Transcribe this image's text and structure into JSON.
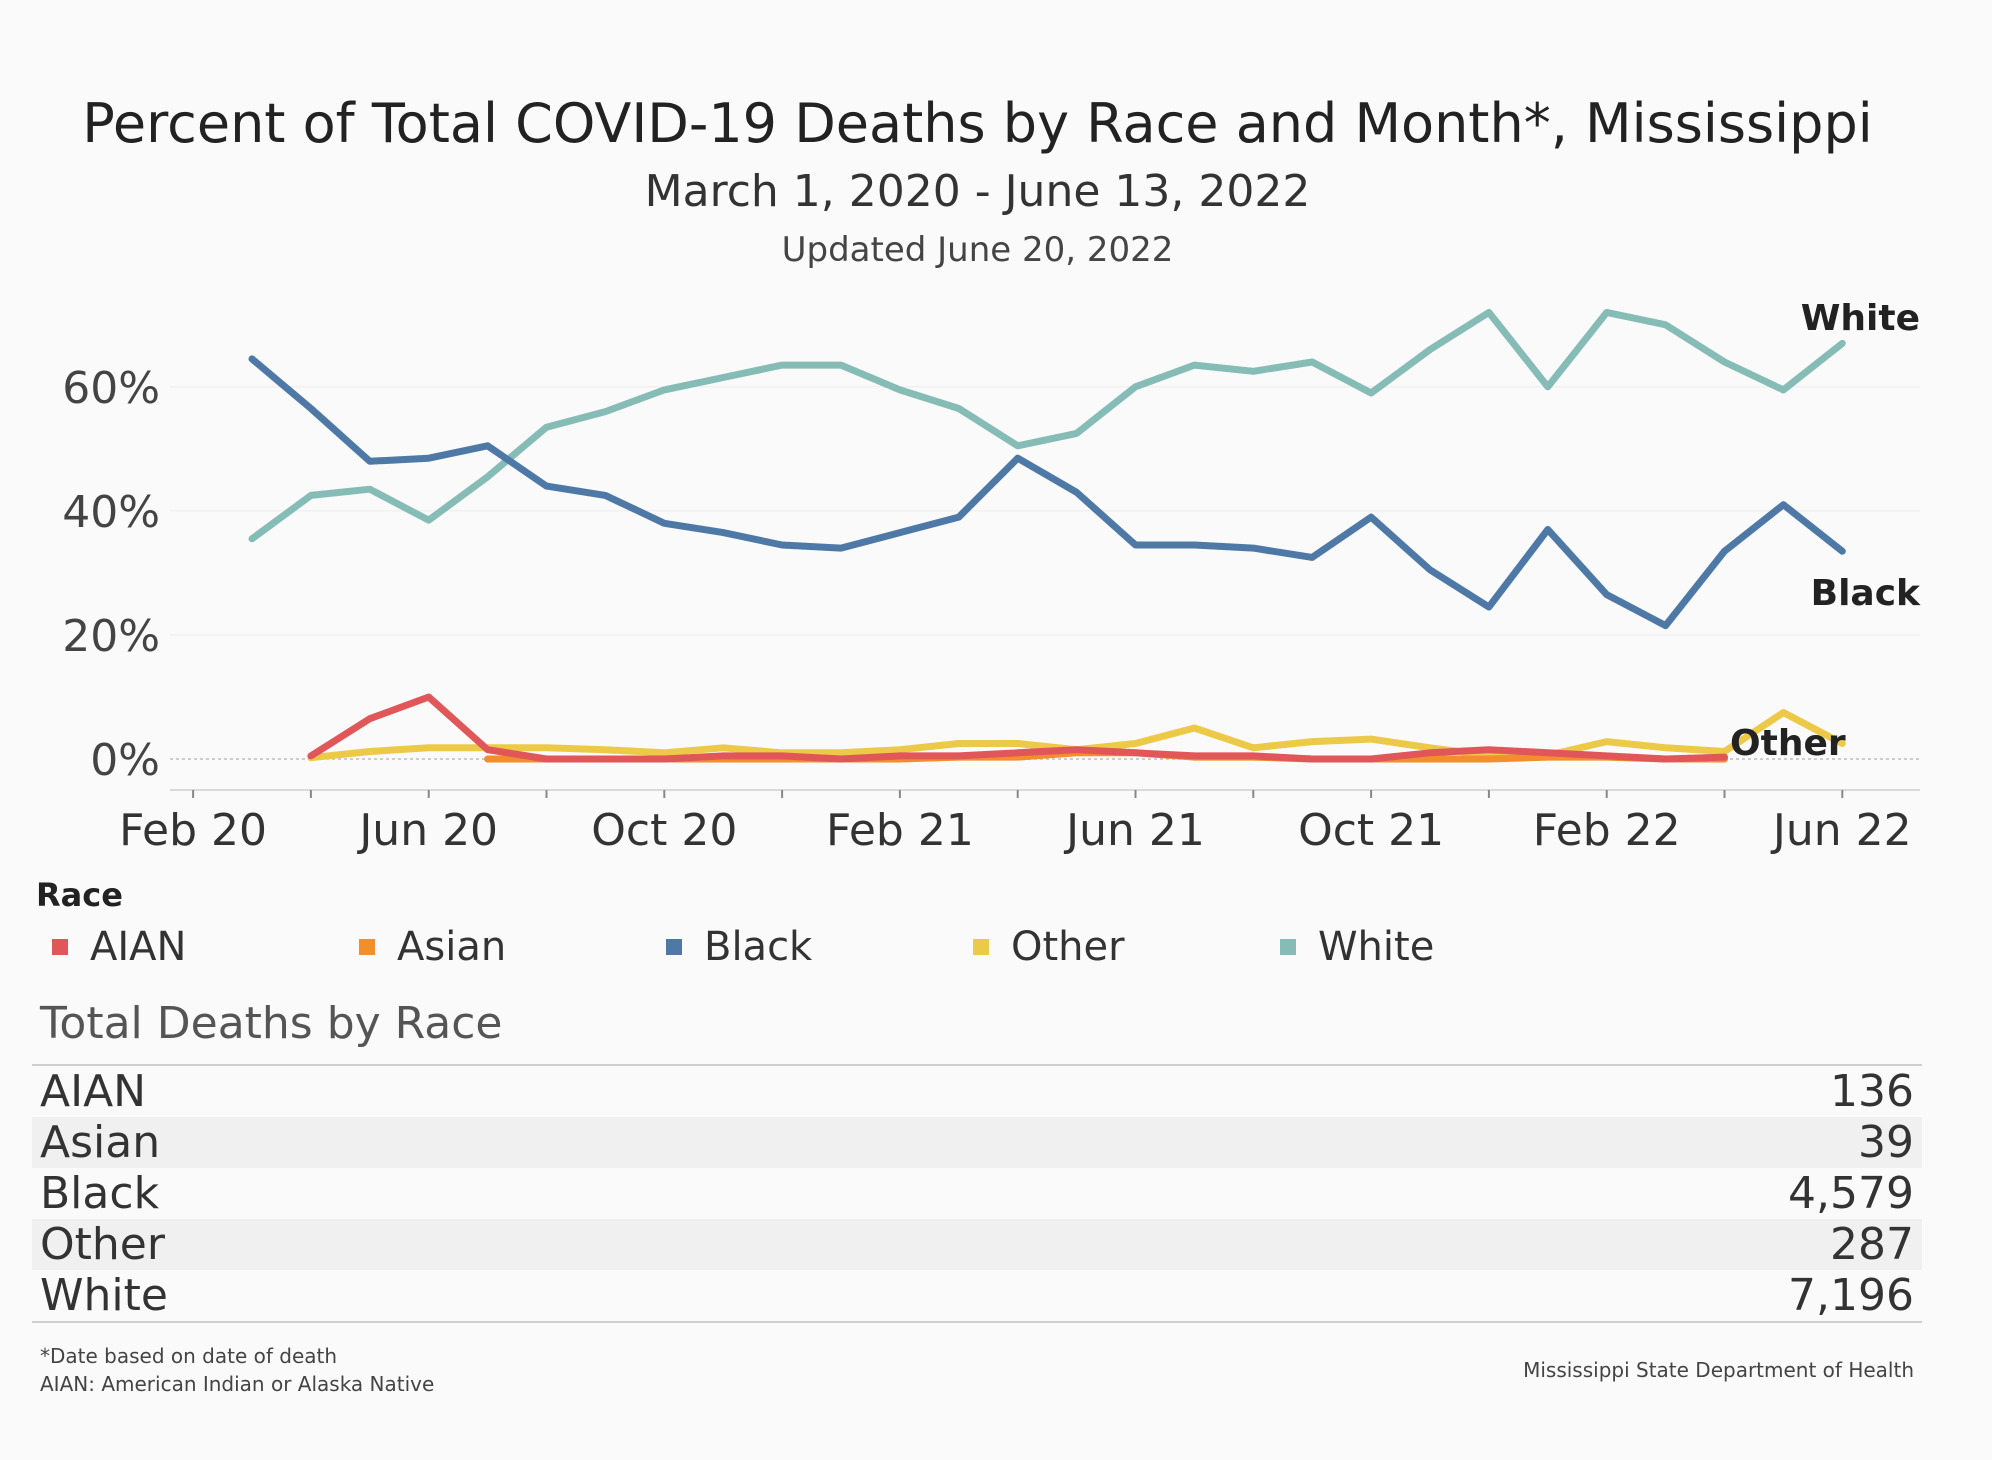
{
  "header": {
    "title": "Percent of Total COVID-19 Deaths by Race and Month*, Mississippi",
    "subtitle": "March 1, 2020 -  June 13, 2022",
    "updated": "Updated June 20, 2022"
  },
  "chart_data": {
    "type": "line",
    "x": [
      "Mar 20",
      "Apr 20",
      "May 20",
      "Jun 20",
      "Jul 20",
      "Aug 20",
      "Sep 20",
      "Oct 20",
      "Nov 20",
      "Dec 20",
      "Jan 21",
      "Feb 21",
      "Mar 21",
      "Apr 21",
      "May 21",
      "Jun 21",
      "Jul 21",
      "Aug 21",
      "Sep 21",
      "Oct 21",
      "Nov 21",
      "Dec 21",
      "Jan 22",
      "Feb 22",
      "Mar 22",
      "Apr 22",
      "May 22",
      "Jun 22"
    ],
    "x_ticks": [
      "Feb 20",
      "Jun 20",
      "Oct 20",
      "Feb 21",
      "Jun 21",
      "Oct 21",
      "Feb 22",
      "Jun 22"
    ],
    "y_ticks": [
      "0%",
      "20%",
      "40%",
      "60%"
    ],
    "ylim": [
      -5,
      74
    ],
    "series": [
      {
        "name": "White",
        "color": "#86bcb6",
        "end_label": "White",
        "values": [
          35.5,
          42.5,
          43.5,
          38.5,
          45.5,
          53.5,
          56,
          59.5,
          61.5,
          63.5,
          63.5,
          59.5,
          56.5,
          50.5,
          52.5,
          60,
          63.5,
          62.5,
          64,
          59,
          66,
          72,
          60,
          72,
          70,
          64,
          59.5,
          67
        ]
      },
      {
        "name": "Black",
        "color": "#4e79a7",
        "end_label": "Black",
        "values": [
          64.5,
          56.5,
          48,
          48.5,
          50.5,
          44,
          42.5,
          38,
          36.5,
          34.5,
          34,
          36.5,
          39,
          48.5,
          43,
          34.5,
          34.5,
          34,
          32.5,
          39,
          30.5,
          24.5,
          37,
          26.5,
          21.5,
          33.5,
          41,
          33.5
        ]
      },
      {
        "name": "Other",
        "color": "#edc948",
        "end_label": "Other",
        "values": [
          null,
          0.2,
          1.2,
          1.8,
          1.8,
          1.8,
          1.5,
          1,
          1.8,
          1,
          1,
          1.5,
          2.5,
          2.5,
          1.5,
          2.5,
          5,
          1.8,
          2.8,
          3.2,
          1.8,
          0.6,
          0.6,
          2.8,
          1.8,
          1.2,
          7.5,
          2.5
        ]
      },
      {
        "name": "Asian",
        "color": "#f28e2b",
        "end_label": "",
        "values": [
          null,
          null,
          null,
          null,
          0,
          0,
          0,
          0,
          0,
          0,
          0,
          0,
          0.3,
          0.3,
          1,
          1,
          0.3,
          0.3,
          0,
          0,
          0,
          0,
          0.3,
          0.3,
          0,
          0,
          null,
          null
        ]
      },
      {
        "name": "AIAN",
        "color": "#e15759",
        "end_label": "",
        "values": [
          null,
          0.5,
          6.5,
          10,
          1.5,
          0,
          0,
          0,
          0.5,
          0.5,
          0,
          0.5,
          0.5,
          1,
          1.5,
          1,
          0.5,
          0.5,
          0,
          0,
          1,
          1.5,
          1,
          0.5,
          0,
          0.3,
          null,
          null
        ]
      }
    ],
    "grid": true,
    "legend": {
      "title": "Race",
      "position": "bottom-left",
      "items": [
        {
          "label": "AIAN",
          "color": "#e15759"
        },
        {
          "label": "Asian",
          "color": "#f28e2b"
        },
        {
          "label": "Black",
          "color": "#4e79a7"
        },
        {
          "label": "Other",
          "color": "#edc948"
        },
        {
          "label": "White",
          "color": "#86bcb6"
        }
      ]
    }
  },
  "totals": {
    "title": "Total Deaths by Race",
    "rows": [
      {
        "name": "AIAN",
        "value": "136"
      },
      {
        "name": "Asian",
        "value": "39"
      },
      {
        "name": "Black",
        "value": "4,579"
      },
      {
        "name": "Other",
        "value": "287"
      },
      {
        "name": "White",
        "value": "7,196"
      }
    ]
  },
  "footer": {
    "note1": "*Date based on date of death",
    "note2": "AIAN: American Indian or Alaska Native",
    "credit": "Mississippi State Department of Health"
  }
}
